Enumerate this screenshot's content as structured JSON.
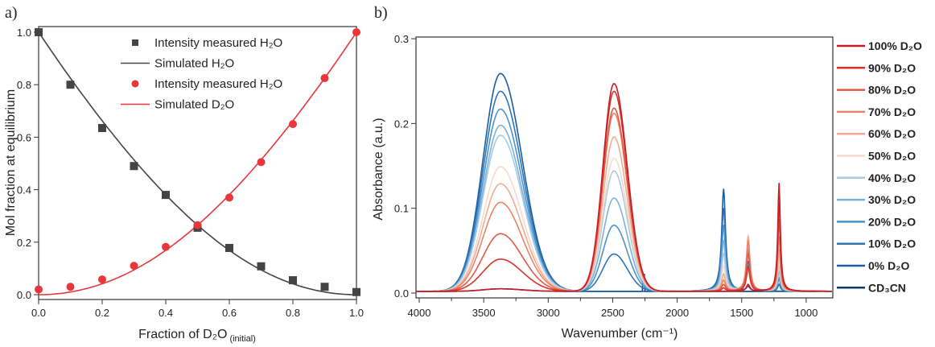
{
  "chart_data": [
    {
      "panel_label": "a)",
      "type": "scatter",
      "xlabel": "Fraction of D₂O",
      "xlabel_subscript": "(initial)",
      "ylabel": "Mol fraction at equilibrium",
      "xlim": [
        0,
        1
      ],
      "ylim": [
        0,
        1
      ],
      "xticks": [
        "0.0",
        "0.2",
        "0.4",
        "0.6",
        "0.8",
        "1.0"
      ],
      "yticks": [
        "0.0",
        "0.2",
        "0.4",
        "0.6",
        "0.8",
        "1.0"
      ],
      "grid": false,
      "legend_position": "top-center",
      "x": [
        0,
        0.1,
        0.2,
        0.3,
        0.4,
        0.5,
        0.6,
        0.7,
        0.8,
        0.9,
        1.0
      ],
      "series": [
        {
          "name": "Intensity measured H₂O",
          "kind": "markers",
          "marker": "square",
          "color": "#444444",
          "values": [
            1.0,
            0.8,
            0.635,
            0.49,
            0.38,
            0.255,
            0.178,
            0.108,
            0.055,
            0.03,
            0.01
          ]
        },
        {
          "name": "Simulated H₂O",
          "kind": "line",
          "color": "#444444",
          "values": [
            1.0,
            0.81,
            0.64,
            0.49,
            0.36,
            0.26,
            0.16,
            0.09,
            0.04,
            0.01,
            0.0
          ]
        },
        {
          "name": "Intensity measured H₂O",
          "kind": "markers",
          "marker": "circle",
          "color": "#e8363b",
          "values": [
            0.02,
            0.03,
            0.058,
            0.11,
            0.182,
            0.265,
            0.37,
            0.505,
            0.65,
            0.825,
            1.0
          ]
        },
        {
          "name": "Simulated D₂O",
          "kind": "line",
          "color": "#e8363b",
          "values": [
            0.0,
            0.01,
            0.045,
            0.1,
            0.175,
            0.265,
            0.37,
            0.5,
            0.645,
            0.81,
            1.0
          ]
        }
      ]
    },
    {
      "panel_label": "b)",
      "type": "line",
      "xlabel": "Wavenumber (cm⁻¹)",
      "ylabel": "Absorbance (a.u.)",
      "xlim": [
        4025,
        800
      ],
      "ylim": [
        0,
        0.3
      ],
      "xticks": [
        "4000",
        "3500",
        "3000",
        "2500",
        "2000",
        "1500",
        "1000"
      ],
      "yticks": [
        "0.0",
        "0.1",
        "0.2",
        "0.3"
      ],
      "grid": false,
      "legend_position": "right",
      "peak_positions_cm-1": [
        3370,
        2490,
        1640,
        1450,
        1210
      ],
      "series": [
        {
          "name": "100% D₂O",
          "color": "#c81d25",
          "peaks": [
            0.003,
            0.245,
            0.0,
            0.008,
            0.128
          ]
        },
        {
          "name": "90% D₂O",
          "color": "#d8342c",
          "peaks": [
            0.038,
            0.236,
            0.004,
            0.028,
            0.105
          ]
        },
        {
          "name": "80% D₂O",
          "color": "#e05a43",
          "peaks": [
            0.068,
            0.216,
            0.008,
            0.045,
            0.085
          ]
        },
        {
          "name": "70% D₂O",
          "color": "#ea8466",
          "peaks": [
            0.105,
            0.21,
            0.013,
            0.06,
            0.065
          ]
        },
        {
          "name": "60% D₂O",
          "color": "#f2ab93",
          "peaks": [
            0.127,
            0.182,
            0.02,
            0.065,
            0.05
          ]
        },
        {
          "name": "50% D₂O",
          "color": "#f8d9cb",
          "peaks": [
            0.147,
            0.157,
            0.03,
            0.067,
            0.04
          ]
        },
        {
          "name": "40% D₂O",
          "color": "#a6cbe4",
          "peaks": [
            0.184,
            0.142,
            0.045,
            0.063,
            0.03
          ]
        },
        {
          "name": "30% D₂O",
          "color": "#7cb2da",
          "peaks": [
            0.196,
            0.11,
            0.06,
            0.058,
            0.024
          ]
        },
        {
          "name": "20% D₂O",
          "color": "#4c93ca",
          "peaks": [
            0.215,
            0.078,
            0.078,
            0.05,
            0.015
          ]
        },
        {
          "name": "10% D₂O",
          "color": "#2e74b6",
          "peaks": [
            0.236,
            0.044,
            0.098,
            0.035,
            0.008
          ]
        },
        {
          "name": "0% D₂O",
          "color": "#1b5ca3",
          "peaks": [
            0.257,
            0.0,
            0.121,
            0.005,
            0.0
          ]
        },
        {
          "name": "CD₃CN",
          "color": "#0e3a6e",
          "peaks": [
            0.003,
            0.0,
            0.0,
            0.0,
            0.0
          ]
        }
      ]
    }
  ]
}
